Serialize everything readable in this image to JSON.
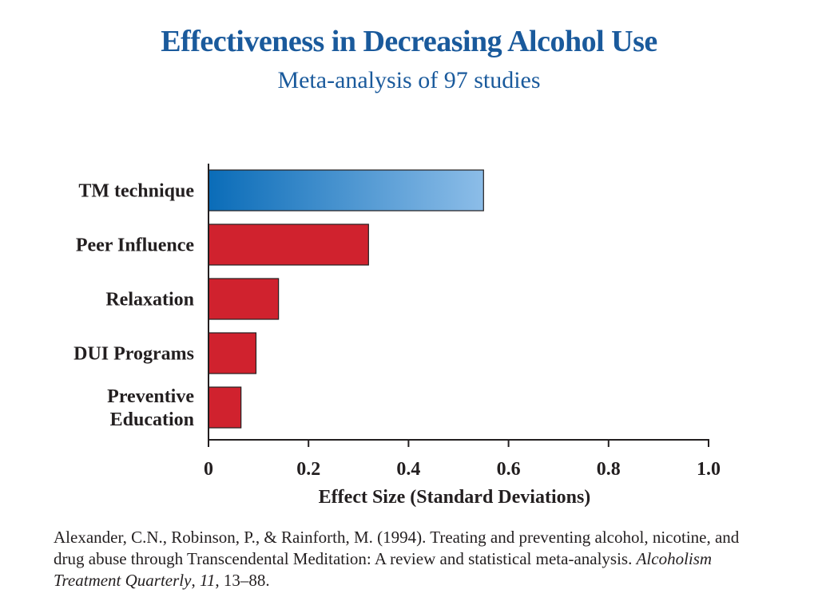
{
  "chart_data": {
    "type": "bar",
    "orientation": "horizontal",
    "title": "Effectiveness in Decreasing Alcohol Use",
    "subtitle": "Meta-analysis of 97 studies",
    "categories": [
      "TM technique",
      "Peer Influence",
      "Relaxation",
      "DUI Programs",
      "Preventive Education"
    ],
    "category_lines": [
      [
        "TM technique"
      ],
      [
        "Peer Influence"
      ],
      [
        "Relaxation"
      ],
      [
        "DUI Programs"
      ],
      [
        "Preventive",
        "Education"
      ]
    ],
    "values": [
      0.55,
      0.32,
      0.14,
      0.095,
      0.065
    ],
    "xlabel": "Effect Size (Standard Deviations)",
    "ylabel": "",
    "xlim": [
      0,
      1.0
    ],
    "xticks": [
      0,
      0.2,
      0.4,
      0.6,
      0.8,
      1.0
    ],
    "xtick_labels": [
      "0",
      "0.2",
      "0.4",
      "0.6",
      "0.8",
      "1.0"
    ],
    "grid": false,
    "colors": {
      "highlight_start": "#0a6cb8",
      "highlight_end": "#8cbde8",
      "bar": "#d0222e",
      "title": "#1a5a9c"
    }
  },
  "citation": {
    "text": "Alexander, C.N., Robinson, P., & Rainforth, M. (1994). Treating and preventing alcohol, nicotine, and drug abuse through Transcendental Meditation: A review and statistical meta-analysis. ",
    "journal": "Alcoholism Treatment Quarterly",
    "sep1": ", ",
    "volume": "11",
    "pages": ", 13–88."
  }
}
